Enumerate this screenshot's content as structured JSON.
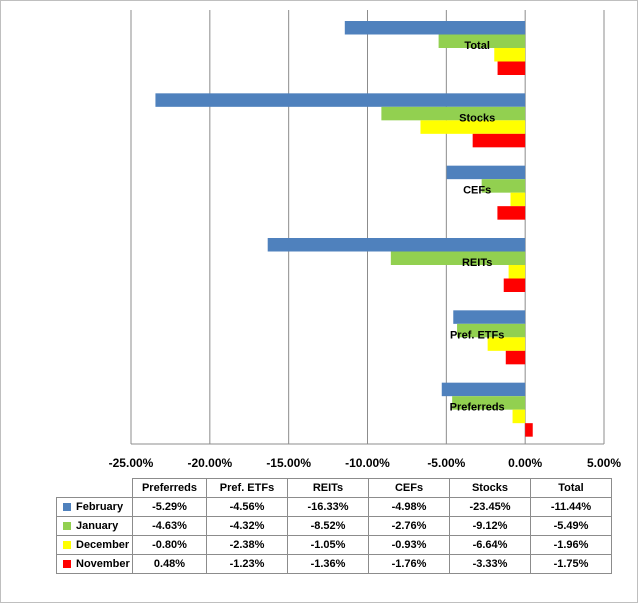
{
  "chart_data": {
    "type": "bar",
    "orientation": "horizontal",
    "categories": [
      "Preferreds",
      "Pref. ETFs",
      "REITs",
      "CEFs",
      "Stocks",
      "Total"
    ],
    "series": [
      {
        "name": "February",
        "color": "#4F81BD",
        "values": [
          -5.29,
          -4.56,
          -16.33,
          -4.98,
          -23.45,
          -11.44
        ],
        "labels": [
          "-5.29%",
          "-4.56%",
          "-16.33%",
          "-4.98%",
          "-23.45%",
          "-11.44%"
        ]
      },
      {
        "name": "January",
        "color": "#92D050",
        "values": [
          -4.63,
          -4.32,
          -8.52,
          -2.76,
          -9.12,
          -5.49
        ],
        "labels": [
          "-4.63%",
          "-4.32%",
          "-8.52%",
          "-2.76%",
          "-9.12%",
          "-5.49%"
        ]
      },
      {
        "name": "December",
        "color": "#FFFF00",
        "values": [
          -0.8,
          -2.38,
          -1.05,
          -0.93,
          -6.64,
          -1.96
        ],
        "labels": [
          "-0.80%",
          "-2.38%",
          "-1.05%",
          "-0.93%",
          "-6.64%",
          "-1.96%"
        ]
      },
      {
        "name": "November",
        "color": "#FF0000",
        "values": [
          0.48,
          -1.23,
          -1.36,
          -1.76,
          -3.33,
          -1.75
        ],
        "labels": [
          "0.48%",
          "-1.23%",
          "-1.36%",
          "-1.76%",
          "-3.33%",
          "-1.75%"
        ]
      }
    ],
    "xlim": [
      -25,
      5
    ],
    "xticks": [
      -25,
      -20,
      -15,
      -10,
      -5,
      0,
      5
    ],
    "xtick_labels": [
      "-25.00%",
      "-20.00%",
      "-15.00%",
      "-10.00%",
      "-5.00%",
      "0.00%",
      "5.00%"
    ],
    "grid": true,
    "legend": "data-table-below",
    "title": "",
    "xlabel": "",
    "ylabel": ""
  }
}
